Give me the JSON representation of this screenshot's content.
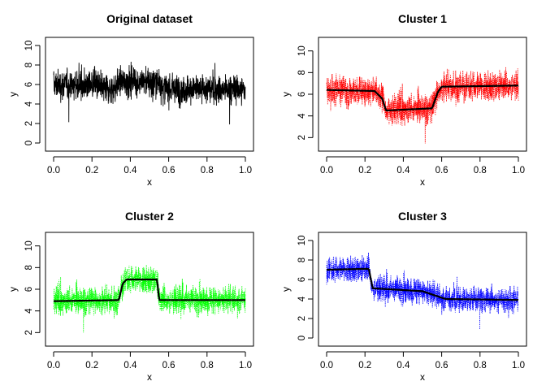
{
  "chart_data": [
    {
      "type": "line",
      "title": "Original dataset",
      "xlabel": "x",
      "ylabel": "y",
      "xlim": [
        0,
        1
      ],
      "ylim": [
        0,
        10
      ],
      "xticks": [
        "0.0",
        "0.2",
        "0.4",
        "0.6",
        "0.8",
        "1.0"
      ],
      "yticks": [
        "0",
        "2",
        "4",
        "6",
        "8",
        "10"
      ],
      "series": [
        {
          "color": "#000000",
          "style": "solid",
          "kind": "noisy-overlay",
          "x": [
            0.0,
            0.23,
            0.24,
            0.3,
            0.35,
            0.54,
            0.58,
            1.0
          ],
          "values": [
            6.0,
            6.0,
            5.7,
            5.5,
            6.3,
            6.3,
            5.5,
            5.5
          ],
          "spread": 1.4
        }
      ],
      "grid": false
    },
    {
      "type": "line",
      "title": "Cluster 1",
      "xlabel": "x",
      "ylabel": "y",
      "xlim": [
        0,
        1
      ],
      "ylim": [
        1.5,
        10.5
      ],
      "xticks": [
        "0.0",
        "0.2",
        "0.4",
        "0.6",
        "0.8",
        "1.0"
      ],
      "yticks": [
        "2",
        "4",
        "6",
        "8",
        "10"
      ],
      "series": [
        {
          "color": "#ff0000",
          "style": "dotted",
          "kind": "noisy-overlay",
          "x": [
            0.0,
            0.25,
            0.29,
            0.31,
            0.55,
            0.58,
            0.6,
            1.0
          ],
          "values": [
            6.4,
            6.3,
            5.6,
            4.5,
            4.7,
            6.2,
            6.7,
            6.8
          ],
          "spread": 1.25
        },
        {
          "color": "#000000",
          "style": "solid",
          "kind": "mean",
          "x": [
            0.0,
            0.25,
            0.29,
            0.31,
            0.55,
            0.58,
            0.6,
            1.0
          ],
          "values": [
            6.4,
            6.3,
            5.6,
            4.5,
            4.7,
            6.2,
            6.7,
            6.8
          ]
        }
      ],
      "grid": false
    },
    {
      "type": "line",
      "title": "Cluster 2",
      "xlabel": "x",
      "ylabel": "y",
      "xlim": [
        0,
        1
      ],
      "ylim": [
        1.5,
        10.5
      ],
      "xticks": [
        "0.0",
        "0.2",
        "0.4",
        "0.6",
        "0.8",
        "1.0"
      ],
      "yticks": [
        "2",
        "4",
        "6",
        "8",
        "10"
      ],
      "series": [
        {
          "color": "#00ff00",
          "style": "dotted",
          "kind": "noisy-overlay",
          "x": [
            0.0,
            0.34,
            0.36,
            0.38,
            0.54,
            0.55,
            1.0
          ],
          "values": [
            4.9,
            5.0,
            6.5,
            6.9,
            6.9,
            5.0,
            5.0
          ],
          "spread": 1.15
        },
        {
          "color": "#000000",
          "style": "solid",
          "kind": "mean",
          "x": [
            0.0,
            0.34,
            0.36,
            0.38,
            0.54,
            0.55,
            1.0
          ],
          "values": [
            4.9,
            5.0,
            6.5,
            6.9,
            6.9,
            5.0,
            5.0
          ]
        }
      ],
      "grid": false
    },
    {
      "type": "line",
      "title": "Cluster 3",
      "xlabel": "x",
      "ylabel": "y",
      "xlim": [
        0,
        1
      ],
      "ylim": [
        0,
        10
      ],
      "xticks": [
        "0.0",
        "0.2",
        "0.4",
        "0.6",
        "0.8",
        "1.0"
      ],
      "yticks": [
        "0",
        "2",
        "4",
        "6",
        "8",
        "10"
      ],
      "series": [
        {
          "color": "#0000ff",
          "style": "dotted",
          "kind": "noisy-overlay",
          "x": [
            0.0,
            0.22,
            0.24,
            0.5,
            0.62,
            1.0
          ],
          "values": [
            7.0,
            7.1,
            5.1,
            4.8,
            4.0,
            3.9
          ],
          "spread": 1.2
        },
        {
          "color": "#000000",
          "style": "solid",
          "kind": "mean",
          "x": [
            0.0,
            0.22,
            0.24,
            0.5,
            0.62,
            1.0
          ],
          "values": [
            7.0,
            7.1,
            5.1,
            4.8,
            4.0,
            3.9
          ]
        }
      ],
      "grid": false
    }
  ]
}
